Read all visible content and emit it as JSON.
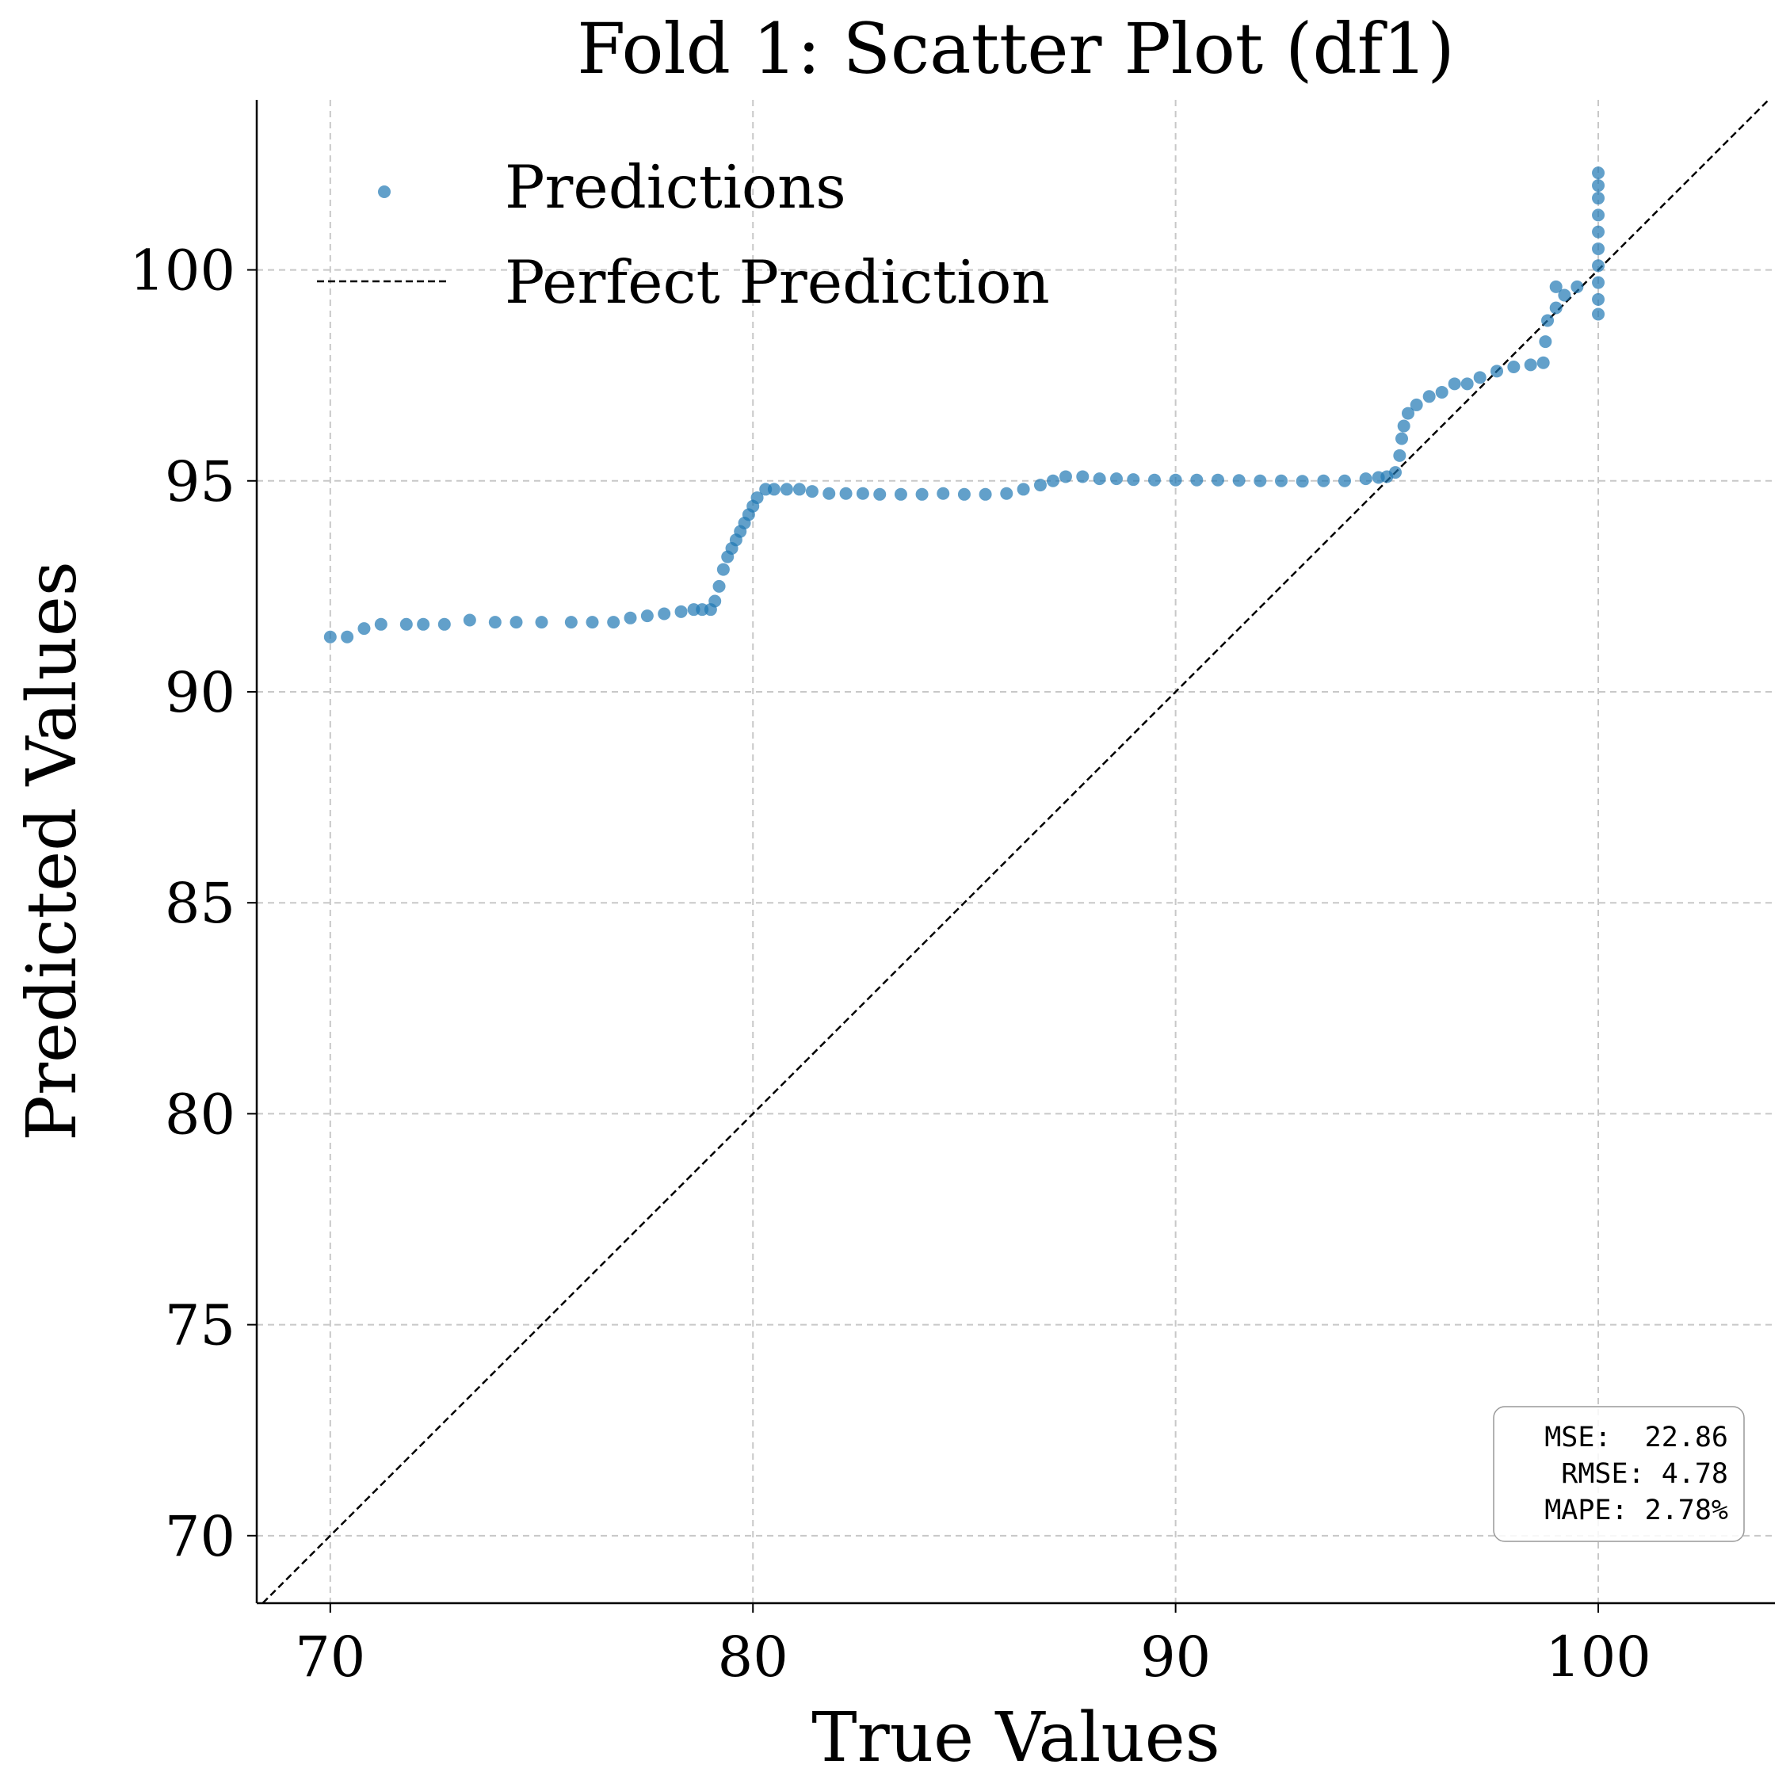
{
  "chart_data": {
    "type": "scatter",
    "title": "Fold 1: Scatter Plot (df1)",
    "x_label": "True Values",
    "y_label": "Predicted Values",
    "xlim": [
      68.26,
      104.18
    ],
    "ylim": [
      68.4,
      104.03
    ],
    "xticks": [
      70,
      80,
      90,
      100
    ],
    "yticks": [
      70,
      75,
      80,
      85,
      90,
      95,
      100
    ],
    "grid": true,
    "legend": "upper left",
    "x": [
      70,
      70.4,
      70.8,
      71.2,
      71.8,
      72.2,
      72.7,
      73.3,
      73.9,
      74.4,
      75,
      75.7,
      76.2,
      76.7,
      77.1,
      77.5,
      77.9,
      78.3,
      78.6,
      78.8,
      79,
      79.1,
      79.2,
      79.3,
      79.4,
      79.5,
      79.6,
      79.7,
      79.8,
      79.9,
      80,
      80.1,
      80.3,
      80.5,
      80.8,
      81.1,
      81.4,
      81.8,
      82.2,
      82.6,
      83,
      83.5,
      84,
      84.5,
      85,
      85.5,
      86,
      86.4,
      86.8,
      87.1,
      87.4,
      87.8,
      88.2,
      88.6,
      89,
      89.5,
      90,
      90.5,
      91,
      91.5,
      92,
      92.5,
      93,
      93.5,
      94,
      94.5,
      94.8,
      95,
      95.2,
      95.3,
      95.35,
      95.4,
      95.5,
      95.7,
      96,
      96.3,
      96.6,
      96.9,
      97.2,
      97.6,
      98,
      98.4,
      98.7,
      98.75,
      98.8,
      99,
      99.2,
      99,
      99.5,
      100,
      100,
      100,
      100,
      100,
      100,
      100,
      100,
      100,
      100
    ],
    "series": [
      {
        "name": "Predictions",
        "color": "#1f77b4",
        "values": [
          91.3,
          91.3,
          91.5,
          91.6,
          91.6,
          91.6,
          91.6,
          91.7,
          91.65,
          91.65,
          91.65,
          91.65,
          91.65,
          91.65,
          91.75,
          91.8,
          91.85,
          91.9,
          91.95,
          91.95,
          91.95,
          92.15,
          92.5,
          92.9,
          93.2,
          93.4,
          93.6,
          93.8,
          94,
          94.2,
          94.4,
          94.6,
          94.8,
          94.8,
          94.8,
          94.8,
          94.75,
          94.7,
          94.7,
          94.7,
          94.68,
          94.68,
          94.68,
          94.7,
          94.68,
          94.68,
          94.7,
          94.8,
          94.9,
          95,
          95.1,
          95.1,
          95.05,
          95.05,
          95.03,
          95.02,
          95.02,
          95.02,
          95.02,
          95.01,
          95,
          95,
          94.99,
          95,
          95,
          95.05,
          95.08,
          95.1,
          95.2,
          95.6,
          96,
          96.3,
          96.6,
          96.8,
          97,
          97.1,
          97.3,
          97.3,
          97.45,
          97.6,
          97.7,
          97.75,
          97.8,
          98.3,
          98.8,
          99.1,
          99.4,
          99.6,
          99.6,
          98.95,
          99.3,
          99.7,
          100.1,
          100.5,
          100.9,
          101.3,
          101.7,
          102,
          102.3
        ]
      }
    ],
    "reference_line": {
      "name": "Perfect Prediction",
      "color": "#000000"
    },
    "annotations": [
      "MSE:  22.86",
      " RMSE: 4.78",
      "MAPE: 2.78%"
    ]
  }
}
